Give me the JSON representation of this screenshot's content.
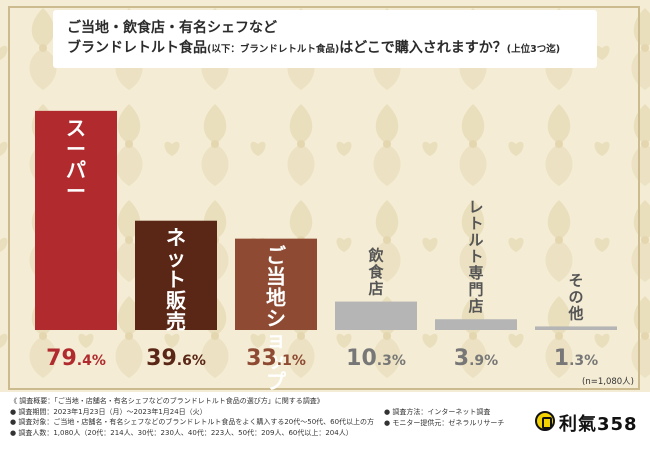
{
  "title": {
    "line1": "ご当地・飲食店・有名シェフなど",
    "line2_main": "ブランドレトルト食品",
    "line2_paren": "(以下：ブランドレトルト食品)",
    "line2_tail": "はどこで購入されますか？",
    "line2_note": "(上位3つ迄)"
  },
  "chart_data": {
    "type": "bar",
    "categories": [
      "スーパー",
      "ネット販売",
      "ご当地ショップ",
      "飲食店",
      "レトルト専門店",
      "その他"
    ],
    "values": [
      79.4,
      39.6,
      33.1,
      10.3,
      3.9,
      1.3
    ],
    "value_labels": [
      "79.4%",
      "39.6%",
      "33.1%",
      "10.3%",
      "3.9%",
      "1.3%"
    ],
    "ylim": [
      0,
      100
    ],
    "sample_note": "(n=1,080人)",
    "colors": [
      "#b02a2e",
      "#5a2616",
      "#8e4a32",
      "#b5b5b5",
      "#b5b5b5",
      "#b5b5b5"
    ],
    "label_colors": [
      "#b02a2e",
      "#5a2616",
      "#8e4a32",
      "#777777",
      "#777777",
      "#777777"
    ],
    "label_inside": [
      true,
      true,
      true,
      false,
      false,
      false
    ]
  },
  "footer": {
    "lines": [
      "《 調査概要：「ご当地・店舗名・有名シェフなどのブランドレトルト食品の選び方」に関する調査》",
      "● 調査期間：2023年1月23日（月）～2023年1月24日（火）",
      "● 調査対象：ご当地・店舗名・有名シェフなどのブランドレトルト食品をよく購入する20代～50代、60代以上の方",
      "● 調査人数：1,080人（20代：214人、30代：230人、40代：223人、50代：209人、60代以上：204人）"
    ],
    "method": "● 調査方法：インターネット調査",
    "provider": "● モニター提供元：ゼネラルリサーチ",
    "logo_text": "利氣358"
  }
}
